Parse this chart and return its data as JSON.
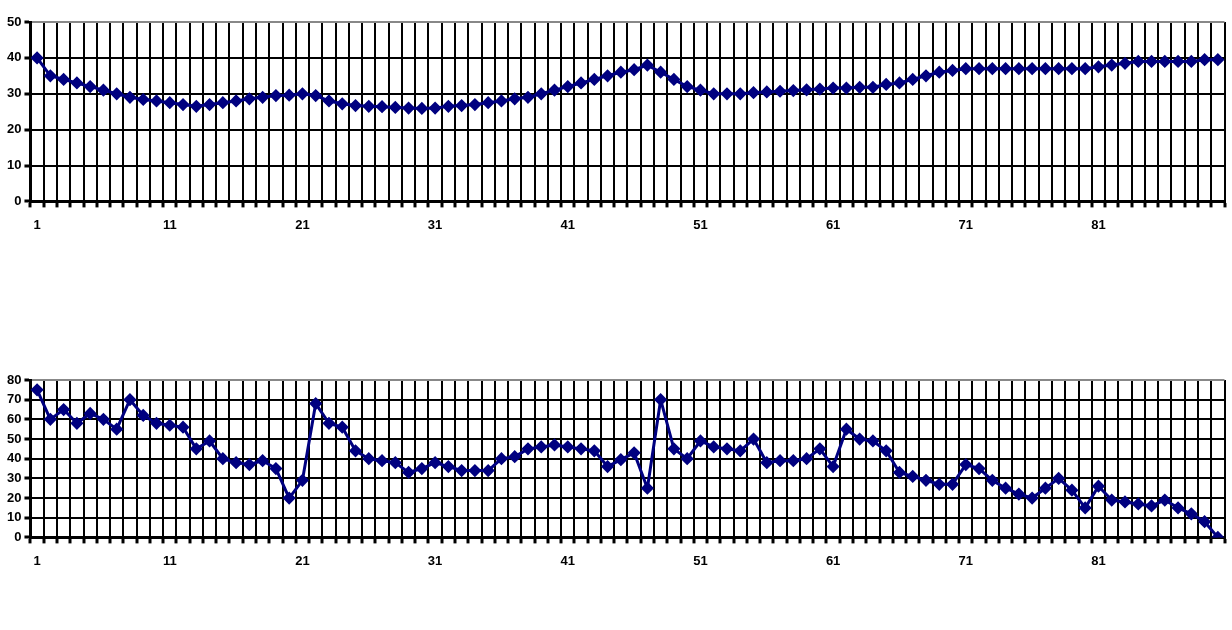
{
  "chart_data": [
    {
      "type": "line",
      "categories": [
        "1",
        null,
        null,
        null,
        null,
        null,
        null,
        null,
        null,
        null,
        "11",
        null,
        null,
        null,
        null,
        null,
        null,
        null,
        null,
        null,
        "21",
        null,
        null,
        null,
        null,
        null,
        null,
        null,
        null,
        null,
        "31",
        null,
        null,
        null,
        null,
        null,
        null,
        null,
        null,
        null,
        "41",
        null,
        null,
        null,
        null,
        null,
        null,
        null,
        null,
        null,
        "51",
        null,
        null,
        null,
        null,
        null,
        null,
        null,
        null,
        null,
        "61",
        null,
        null,
        null,
        null,
        null,
        null,
        null,
        null,
        null,
        "71",
        null,
        null,
        null,
        null,
        null,
        null,
        null,
        null,
        null,
        "81",
        null,
        null,
        null,
        null,
        null,
        null,
        null,
        null,
        null
      ],
      "series": [
        {
          "color": "#000080",
          "values": [
            40,
            35,
            34,
            33,
            32,
            31,
            30,
            29,
            28.4,
            28,
            27.5,
            27,
            26.5,
            27,
            27.5,
            28,
            28.6,
            29,
            29.5,
            29.6,
            30,
            29.5,
            28,
            27.2,
            26.7,
            26.5,
            26.4,
            26.2,
            26,
            25.9,
            26,
            26.5,
            26.7,
            27,
            27.5,
            28,
            28.6,
            29,
            30,
            31,
            32,
            33,
            34,
            35,
            36,
            36.7,
            38,
            36,
            34,
            32,
            31,
            30,
            30,
            30,
            30.3,
            30.5,
            30.7,
            30.9,
            31.1,
            31.3,
            31.6,
            31.6,
            31.8,
            31.8,
            32.6,
            33,
            34,
            35,
            36,
            36.5,
            37,
            37,
            37,
            37,
            37,
            37,
            37,
            37,
            37,
            37,
            37.5,
            38,
            38.5,
            39,
            39,
            39,
            39,
            39,
            39.5,
            39.5
          ]
        }
      ],
      "ylim": [
        0,
        50
      ],
      "yticks": [
        0,
        10,
        20,
        30,
        40,
        50
      ],
      "grid": true,
      "legend": false,
      "marker": "diamond",
      "line_style": "solid"
    },
    {
      "type": "line",
      "categories": [
        "1",
        null,
        null,
        null,
        null,
        null,
        null,
        null,
        null,
        null,
        "11",
        null,
        null,
        null,
        null,
        null,
        null,
        null,
        null,
        null,
        "21",
        null,
        null,
        null,
        null,
        null,
        null,
        null,
        null,
        null,
        "31",
        null,
        null,
        null,
        null,
        null,
        null,
        null,
        null,
        null,
        "41",
        null,
        null,
        null,
        null,
        null,
        null,
        null,
        null,
        null,
        "51",
        null,
        null,
        null,
        null,
        null,
        null,
        null,
        null,
        null,
        "61",
        null,
        null,
        null,
        null,
        null,
        null,
        null,
        null,
        null,
        "71",
        null,
        null,
        null,
        null,
        null,
        null,
        null,
        null,
        null,
        "81",
        null,
        null,
        null,
        null,
        null,
        null,
        null,
        null,
        null
      ],
      "series": [
        {
          "color": "#000080",
          "values": [
            75,
            60,
            65,
            58,
            63,
            60,
            55,
            70,
            62,
            58,
            57,
            56,
            45,
            49,
            40,
            38,
            37,
            39,
            35,
            20,
            29,
            68,
            58,
            56,
            44,
            40,
            39,
            38,
            33,
            35,
            38,
            36,
            34,
            34,
            34,
            40,
            41,
            45,
            46,
            47,
            46,
            45,
            44,
            36,
            39.5,
            43,
            25,
            70,
            45,
            40,
            49,
            46,
            45,
            44,
            50,
            38,
            39,
            39,
            40,
            45,
            36,
            55,
            50,
            49,
            44,
            33,
            31,
            29,
            27,
            27,
            37,
            35,
            29,
            25,
            22,
            20,
            25,
            30,
            24,
            15,
            26,
            19,
            18,
            17,
            16,
            19,
            15,
            12,
            8,
            0
          ]
        }
      ],
      "ylim": [
        0,
        80
      ],
      "yticks": [
        0,
        10,
        20,
        30,
        40,
        50,
        60,
        70,
        80
      ],
      "grid": true,
      "legend": false,
      "marker": "diamond",
      "line_style": "solid"
    }
  ]
}
